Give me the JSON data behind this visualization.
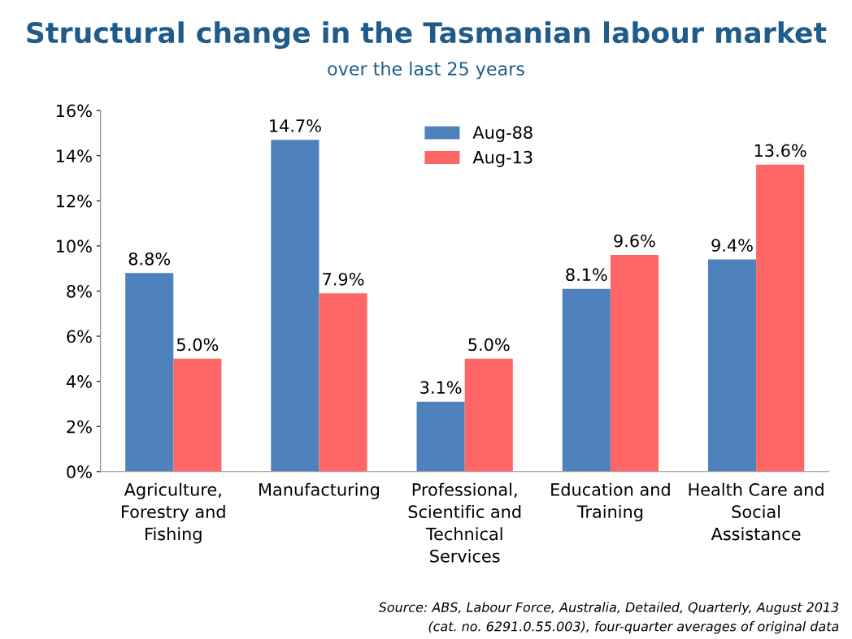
{
  "chart_data": {
    "type": "bar",
    "title": "Structural change in the Tasmanian labour market",
    "subtitle": "over the last 25 years",
    "categories": [
      "Agriculture,\nForestry and\nFishing",
      "Manufacturing",
      "Professional,\nScientific and\nTechnical\nServices",
      "Education and\nTraining",
      "Health Care and\nSocial\nAssistance"
    ],
    "series": [
      {
        "name": "Aug-88",
        "color": "#4f81bd",
        "values": [
          8.8,
          14.7,
          3.1,
          8.1,
          9.4
        ],
        "value_labels": [
          "8.8%",
          "14.7%",
          "3.1%",
          "8.1%",
          "9.4%"
        ]
      },
      {
        "name": "Aug-13",
        "color": "#ff6666",
        "values": [
          5.0,
          7.9,
          5.0,
          9.6,
          13.6
        ],
        "value_labels": [
          "5.0%",
          "7.9%",
          "5.0%",
          "9.6%",
          "13.6%"
        ]
      }
    ],
    "ylim": [
      0,
      16
    ],
    "yticks": [
      {
        "value": 0,
        "label": "0%"
      },
      {
        "value": 2,
        "label": "2%"
      },
      {
        "value": 4,
        "label": "4%"
      },
      {
        "value": 6,
        "label": "6%"
      },
      {
        "value": 8,
        "label": "8%"
      },
      {
        "value": 10,
        "label": "10%"
      },
      {
        "value": 12,
        "label": "12%"
      },
      {
        "value": 14,
        "label": "14%"
      },
      {
        "value": 16,
        "label": "16%"
      }
    ],
    "grid": false,
    "legend": "top center",
    "annotations": [
      "Source: ABS, Labour Force, Australia, Detailed, Quarterly, August 2013",
      "(cat. no. 6291.0.55.003), four-quarter averages of original data"
    ]
  }
}
